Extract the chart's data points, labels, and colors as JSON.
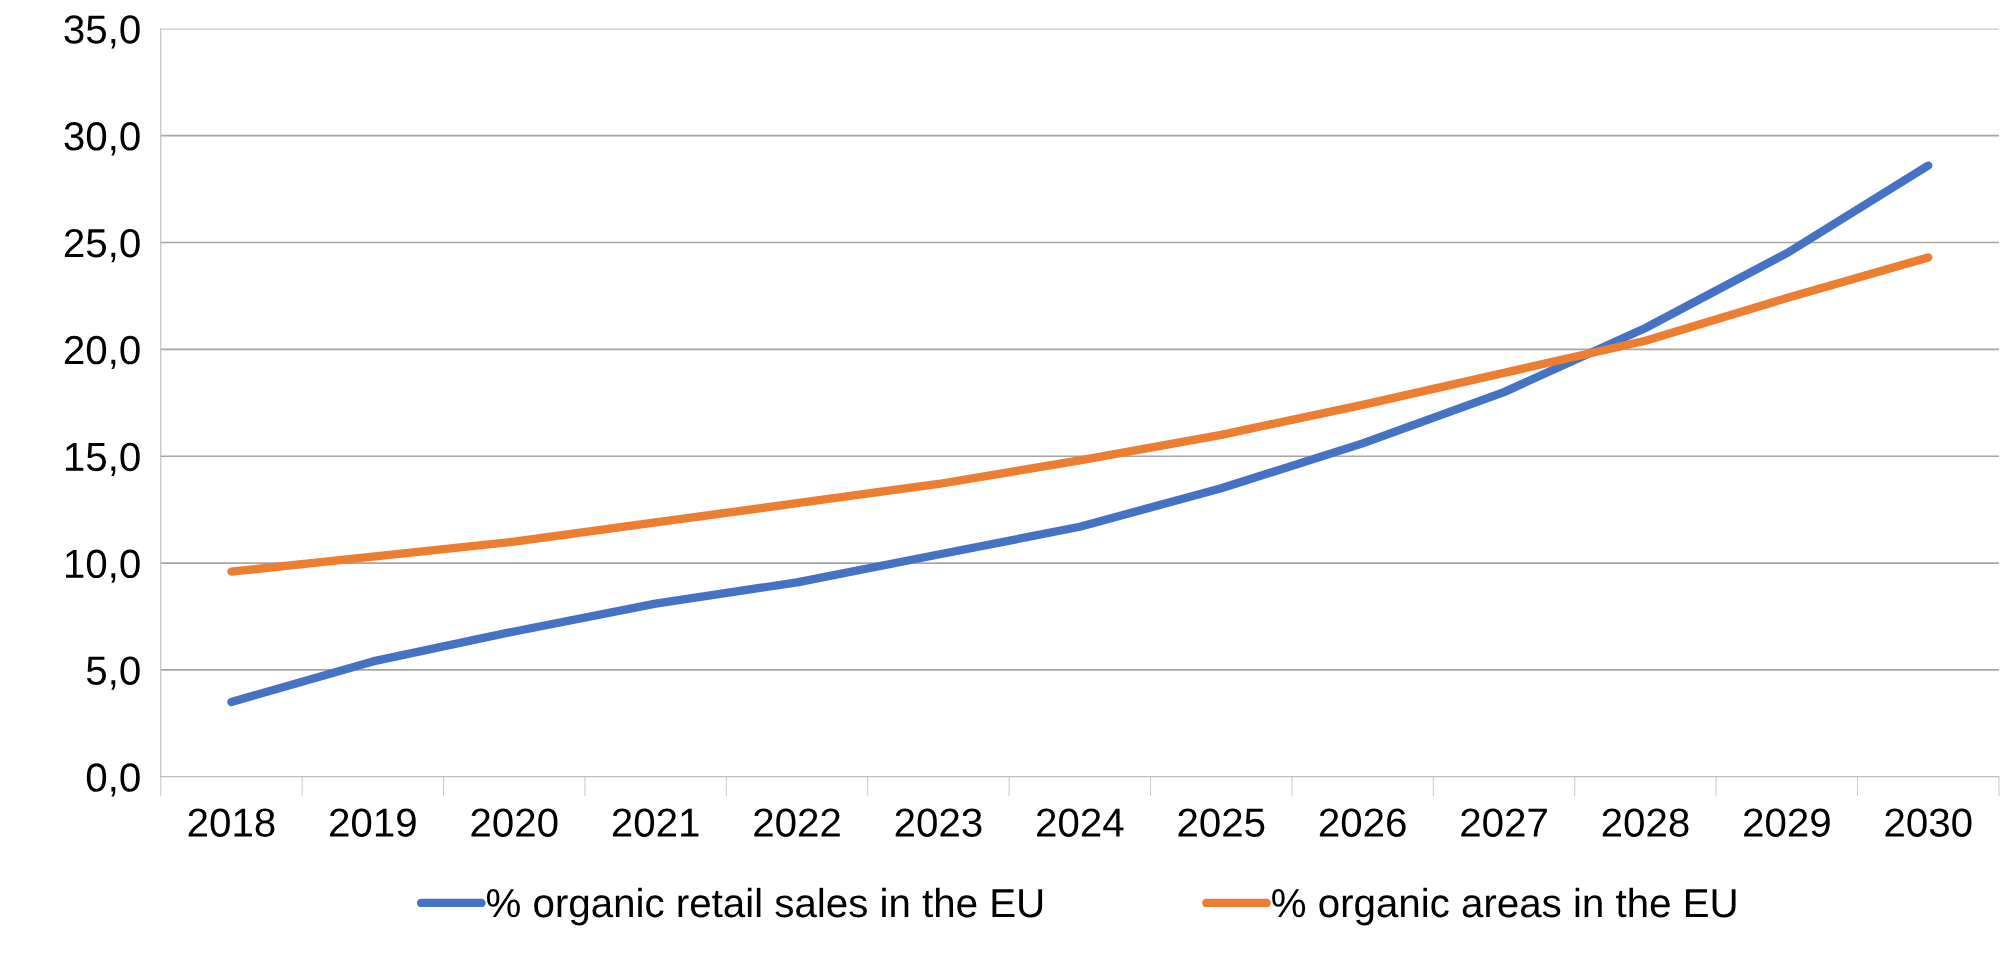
{
  "chart_data": {
    "type": "line",
    "categories": [
      "2018",
      "2019",
      "2020",
      "2021",
      "2022",
      "2023",
      "2024",
      "2025",
      "2026",
      "2027",
      "2028",
      "2029",
      "2030"
    ],
    "series": [
      {
        "name": "% organic retail sales in the EU",
        "color": "#4472c4",
        "values": [
          3.5,
          5.4,
          6.8,
          8.1,
          9.1,
          10.4,
          11.7,
          13.5,
          15.6,
          18.0,
          21.0,
          24.5,
          28.6
        ]
      },
      {
        "name": "% organic areas in the EU",
        "color": "#ed7d31",
        "values": [
          9.6,
          10.3,
          11.0,
          11.9,
          12.8,
          13.7,
          14.8,
          16.0,
          17.4,
          18.9,
          20.4,
          22.4,
          24.3
        ]
      }
    ],
    "ylim": [
      0,
      35
    ],
    "yticks": [
      {
        "value": 0,
        "label": "0,0"
      },
      {
        "value": 5,
        "label": "5,0"
      },
      {
        "value": 10,
        "label": "10,0"
      },
      {
        "value": 15,
        "label": "15,0"
      },
      {
        "value": 20,
        "label": "20,0"
      },
      {
        "value": 25,
        "label": "25,0"
      },
      {
        "value": 30,
        "label": "30,0"
      },
      {
        "value": 35,
        "label": "35,0"
      }
    ],
    "grid": "y",
    "legend": "bottom",
    "marker": "none",
    "line_style": "solid"
  }
}
